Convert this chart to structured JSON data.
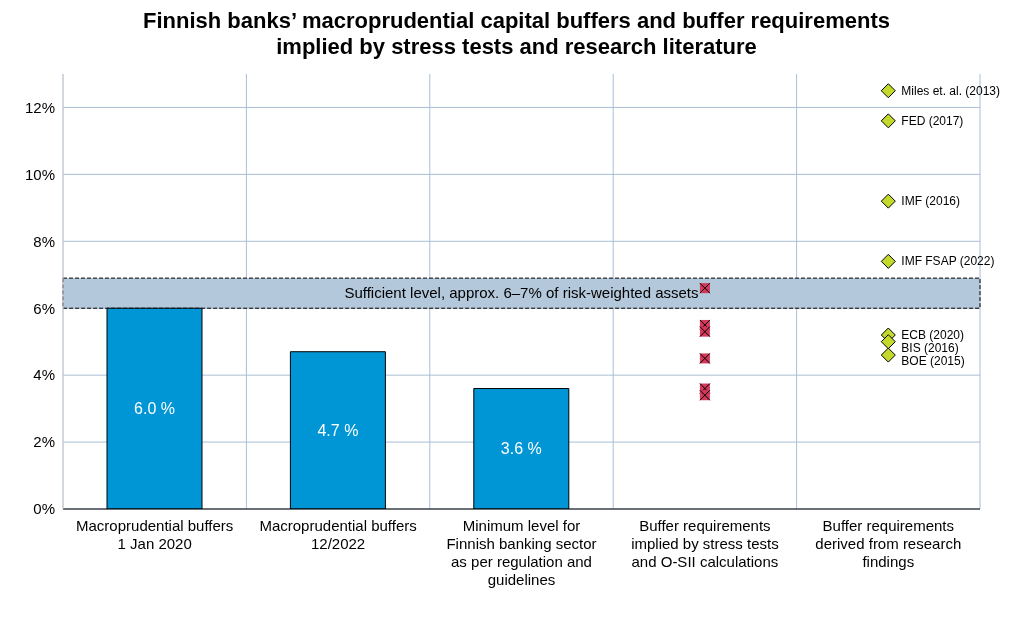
{
  "chart_data": {
    "type": "bar",
    "title": "Finnish banks’ macroprudential capital buffers and buffer requirements implied by stress tests and research literature",
    "categories": [
      "Macroprudential buffers 1 Jan 2020",
      "Macroprudential buffers 12/2022",
      "Minimum level for Finnish banking sector as per regulation and guidelines",
      "Buffer requirements implied by stress tests and O-SII calculations",
      "Buffer requirements derived from research findings"
    ],
    "series": [
      {
        "color": "#0096d6",
        "values": [
          6.0,
          4.7,
          3.6,
          null,
          null
        ],
        "value_labels": [
          "6.0 %",
          "4.7 %",
          "3.6 %",
          null,
          null
        ]
      },
      {
        "type": "scatter",
        "marker": "square",
        "color": "#d2395a",
        "x": [
          "Buffer requirements implied by stress tests and O-SII calculations",
          "Buffer requirements implied by stress tests and O-SII calculations",
          "Buffer requirements implied by stress tests and O-SII calculations",
          "Buffer requirements implied by stress tests and O-SII calculations",
          "Buffer requirements implied by stress tests and O-SII calculations",
          "Buffer requirements implied by stress tests and O-SII calculations"
        ],
        "values": [
          6.6,
          5.5,
          5.3,
          4.5,
          3.6,
          3.4
        ]
      },
      {
        "type": "scatter",
        "marker": "diamond",
        "color": "#c3d92b",
        "x": [
          "Buffer requirements derived from research findings",
          "Buffer requirements derived from research findings",
          "Buffer requirements derived from research findings",
          "Buffer requirements derived from research findings",
          "Buffer requirements derived from research findings",
          "Buffer requirements derived from research findings",
          "Buffer requirements derived from research findings"
        ],
        "values": [
          12.5,
          11.6,
          9.2,
          7.4,
          5.2,
          5.0,
          4.6
        ]
      }
    ],
    "annotations": [
      {
        "text": "Miles et. al. (2013)",
        "x": "Buffer requirements derived from research findings",
        "y": 12.5
      },
      {
        "text": "FED (2017)",
        "x": "Buffer requirements derived from research findings",
        "y": 11.6
      },
      {
        "text": "IMF (2016)",
        "x": "Buffer requirements derived from research findings",
        "y": 9.2
      },
      {
        "text": "IMF FSAP (2022)",
        "x": "Buffer requirements derived from research findings",
        "y": 7.4
      },
      {
        "text": "ECB (2020)",
        "x": "Buffer requirements derived from research findings",
        "y": 5.2
      },
      {
        "text": "BIS (2016)",
        "x": "Buffer requirements derived from research findings",
        "y": 5.0
      },
      {
        "text": "BOE (2015)",
        "x": "Buffer requirements derived from research findings",
        "y": 4.6
      }
    ],
    "bands": [
      {
        "axis": "y",
        "from": 6,
        "to": 6.9,
        "label": "Sufficient level, approx. 6–7% of risk-weighted assets",
        "color": "#b4c8dc"
      }
    ],
    "ylim": [
      0,
      13
    ],
    "yticks": [
      {
        "value": 0,
        "label": "0%"
      },
      {
        "value": 2,
        "label": "2%"
      },
      {
        "value": 4,
        "label": "4%"
      },
      {
        "value": 6,
        "label": "6%"
      },
      {
        "value": 8,
        "label": "8%"
      },
      {
        "value": 10,
        "label": "10%"
      },
      {
        "value": 12,
        "label": "12%"
      }
    ],
    "grid": true
  }
}
